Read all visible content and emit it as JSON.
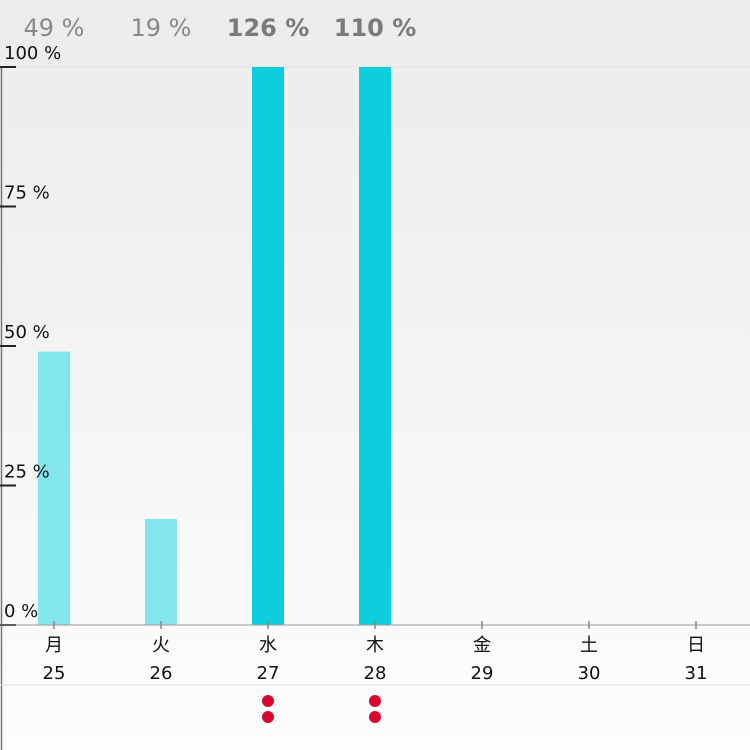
{
  "chart_data": {
    "type": "bar",
    "categories": [
      "月",
      "火",
      "水",
      "木",
      "金",
      "土",
      "日"
    ],
    "dates": [
      "25",
      "26",
      "27",
      "28",
      "29",
      "30",
      "31"
    ],
    "values": [
      49,
      19,
      126,
      110,
      null,
      null,
      null
    ],
    "value_labels": [
      "49 %",
      "19 %",
      "126 %",
      "110 %",
      "",
      "",
      ""
    ],
    "over_target": [
      false,
      false,
      true,
      true,
      false,
      false,
      false
    ],
    "y_ticks": [
      "0 %",
      "25 %",
      "50 %",
      "75 %",
      "100 %"
    ],
    "y_tick_values": [
      0,
      25,
      50,
      75,
      100
    ],
    "ylim": [
      0,
      100
    ],
    "grid": false,
    "markers_per_day": [
      0,
      0,
      2,
      2,
      0,
      0,
      0
    ]
  },
  "colors": {
    "bar_normal": "#84e6ed",
    "bar_over": "#0ccedd",
    "label_normal": "#888888",
    "label_over": "#7a7a7a",
    "marker": "#d9062f",
    "axis": "#222222"
  }
}
